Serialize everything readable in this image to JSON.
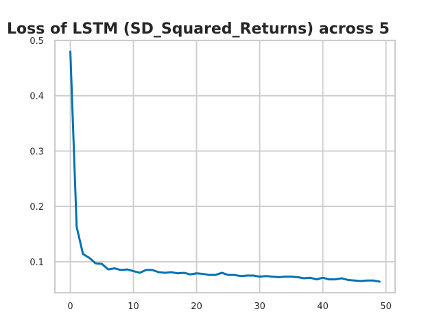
{
  "chart_data": {
    "type": "line",
    "title": "Loss of LSTM (SD_Squared_Returns) across 5",
    "xlabel": "",
    "ylabel": "",
    "xlim": [
      -2.45,
      51.45
    ],
    "ylim": [
      0.044,
      0.5
    ],
    "xticks": [
      0,
      10,
      20,
      30,
      40,
      50
    ],
    "yticks": [
      0.1,
      0.2,
      0.3,
      0.4,
      0.5
    ],
    "xtick_labels": [
      "0",
      "10",
      "20",
      "30",
      "40",
      "50"
    ],
    "ytick_labels": [
      "0.1",
      "0.2",
      "0.3",
      "0.4",
      "0.5"
    ],
    "grid": true,
    "legend": "none",
    "colors": {
      "line": "#0072b2",
      "grid": "#cccccc",
      "text": "#262626"
    },
    "series": [
      {
        "x": [
          0,
          1,
          2,
          3,
          4,
          5,
          6,
          7,
          8,
          9,
          10,
          11,
          12,
          13,
          14,
          15,
          16,
          17,
          18,
          19,
          20,
          21,
          22,
          23,
          24,
          25,
          26,
          27,
          28,
          29,
          30,
          31,
          32,
          33,
          34,
          35,
          36,
          37,
          38,
          39,
          40,
          41,
          42,
          43,
          44,
          45,
          46,
          47,
          48,
          49
        ],
        "values": [
          0.48,
          0.163,
          0.114,
          0.107,
          0.097,
          0.096,
          0.086,
          0.088,
          0.085,
          0.086,
          0.083,
          0.08,
          0.085,
          0.085,
          0.081,
          0.08,
          0.081,
          0.079,
          0.08,
          0.077,
          0.079,
          0.078,
          0.076,
          0.076,
          0.08,
          0.076,
          0.076,
          0.074,
          0.075,
          0.075,
          0.073,
          0.074,
          0.073,
          0.072,
          0.073,
          0.073,
          0.072,
          0.07,
          0.071,
          0.068,
          0.071,
          0.068,
          0.068,
          0.07,
          0.067,
          0.066,
          0.065,
          0.066,
          0.066,
          0.064
        ]
      }
    ]
  }
}
